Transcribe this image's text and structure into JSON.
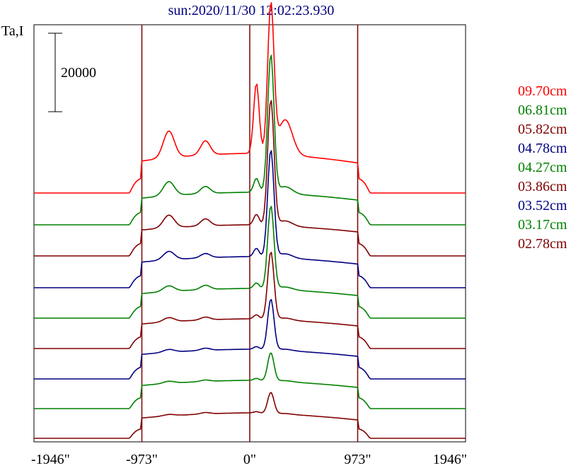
{
  "chart_data": {
    "type": "line",
    "title": "sun:2020/11/30 12:02:23.930",
    "ylabel": "Ta,I",
    "scale_bar_label": "20000",
    "x_ticks": [
      "-1946\"",
      "-973\"",
      "0\"",
      "973\"",
      "1946\""
    ],
    "x_tick_values": [
      -1946,
      -973,
      0,
      973,
      1946
    ],
    "xlim": [
      -1946,
      1946
    ],
    "grid": "vertical lines at -973, 0, 973",
    "legend_position": "right",
    "series": [
      {
        "name": "09.70cm",
        "color": "#ff0000",
        "base": 273,
        "limb": 37,
        "disk": 56,
        "bump1": 38,
        "bump2": 20,
        "peak": 210,
        "shoulder": 100
      },
      {
        "name": "06.81cm",
        "color": "#008000",
        "base": 318,
        "limb": 32,
        "disk": 46,
        "bump1": 20,
        "bump2": 10,
        "peak": 196,
        "shoulder": 20
      },
      {
        "name": "05.82cm",
        "color": "#800000",
        "base": 362,
        "limb": 32,
        "disk": 44,
        "bump1": 18,
        "bump2": 10,
        "peak": 178,
        "shoulder": 15
      },
      {
        "name": "04.78cm",
        "color": "#000080",
        "base": 407,
        "limb": 31,
        "disk": 44,
        "bump1": 12,
        "bump2": 6,
        "peak": 152,
        "shoulder": 12
      },
      {
        "name": "04.27cm",
        "color": "#008000",
        "base": 450,
        "limb": 30,
        "disk": 42,
        "bump1": 8,
        "bump2": 6,
        "peak": 118,
        "shoulder": 8
      },
      {
        "name": "03.86cm",
        "color": "#800000",
        "base": 493,
        "limb": 30,
        "disk": 42,
        "bump1": 6,
        "bump2": 4,
        "peak": 96,
        "shoulder": 6
      },
      {
        "name": "03.52cm",
        "color": "#000080",
        "base": 536,
        "limb": 30,
        "disk": 42,
        "bump1": 4,
        "bump2": 3,
        "peak": 72,
        "shoulder": 4
      },
      {
        "name": "03.17cm",
        "color": "#008000",
        "base": 578,
        "limb": 28,
        "disk": 40,
        "bump1": 3,
        "bump2": 2,
        "peak": 40,
        "shoulder": 3
      },
      {
        "name": "02.78cm",
        "color": "#800000",
        "base": 620,
        "limb": 24,
        "disk": 36,
        "bump1": 2,
        "bump2": 2,
        "peak": 30,
        "shoulder": 2
      }
    ]
  }
}
